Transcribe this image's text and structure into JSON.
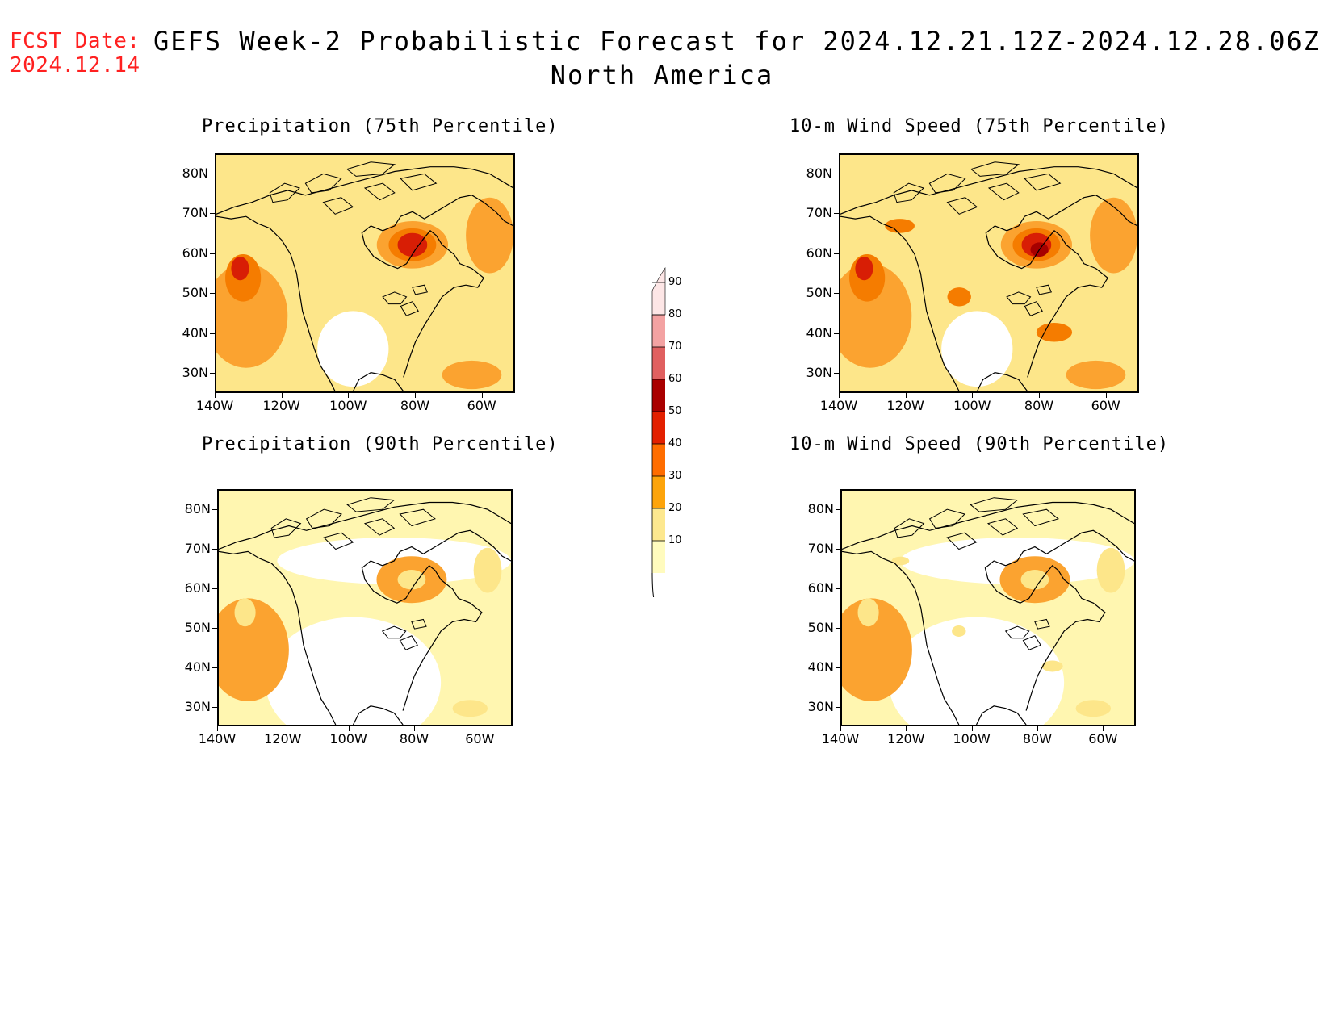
{
  "fcst_label": "FCST Date:",
  "fcst_date": "2024.12.14",
  "title_line1": "GEFS Week-2 Probabilistic Forecast for 2024.12.21.12Z-2024.12.28.06Z",
  "title_line2": "North America",
  "lat_labels": [
    "80N",
    "70N",
    "60N",
    "50N",
    "40N",
    "30N"
  ],
  "lon_labels": [
    "140W",
    "120W",
    "100W",
    "80W",
    "60W"
  ],
  "panels": [
    {
      "title": "Precipitation (75th Percentile)",
      "intensity": 0.75
    },
    {
      "title": "10-m Wind Speed (75th Percentile)",
      "intensity": 0.85
    },
    {
      "title": "Precipitation (90th Percentile)",
      "intensity": 0.35
    },
    {
      "title": "10-m Wind Speed (90th Percentile)",
      "intensity": 0.45
    }
  ],
  "colorbar": {
    "levels": [
      "10",
      "20",
      "30",
      "40",
      "50",
      "60",
      "70",
      "80",
      "90"
    ],
    "colors": [
      "#fffbbe",
      "#fde88f",
      "#fda40b",
      "#ff6d00",
      "#e32000",
      "#a90000",
      "#e06060",
      "#f3a2a2",
      "#fde6e6"
    ]
  },
  "palette": {
    "lev10": "#fff6b0",
    "lev20": "#fde68a",
    "lev30": "#fba330",
    "lev40": "#f57c00",
    "lev50": "#d81e05",
    "lev60": "#a60000"
  }
}
